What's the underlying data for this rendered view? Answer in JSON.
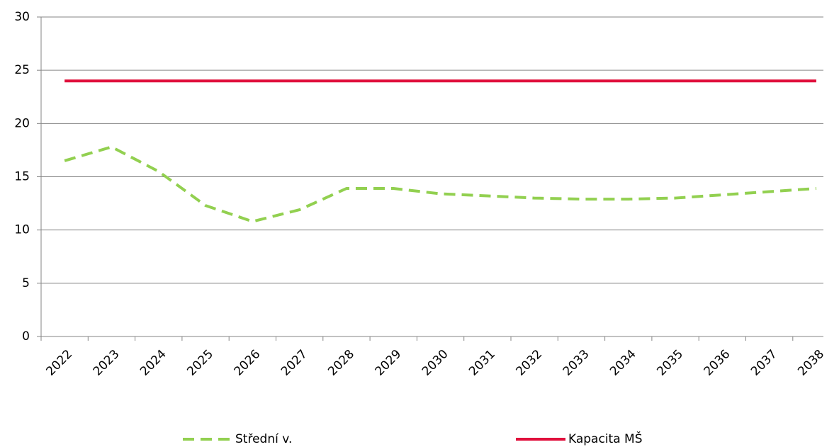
{
  "chart_data": {
    "type": "line",
    "categories": [
      "2022",
      "2023",
      "2024",
      "2025",
      "2026",
      "2027",
      "2028",
      "2029",
      "2030",
      "2031",
      "2032",
      "2033",
      "2034",
      "2035",
      "2036",
      "2037",
      "2038"
    ],
    "series": [
      {
        "name": "Střední v.",
        "color": "#92d050",
        "dashed": true,
        "values": [
          16.5,
          17.8,
          15.5,
          12.3,
          10.8,
          11.9,
          13.9,
          13.9,
          13.4,
          13.2,
          13.0,
          12.9,
          12.9,
          13.0,
          13.3,
          13.6,
          13.9
        ]
      },
      {
        "name": "Kapacita MŠ",
        "color": "#e0103c",
        "dashed": false,
        "values": [
          24,
          24,
          24,
          24,
          24,
          24,
          24,
          24,
          24,
          24,
          24,
          24,
          24,
          24,
          24,
          24,
          24
        ]
      }
    ],
    "ylim": [
      0,
      30
    ],
    "yticks": [
      0,
      5,
      10,
      15,
      20,
      25,
      30
    ],
    "grid": true
  }
}
